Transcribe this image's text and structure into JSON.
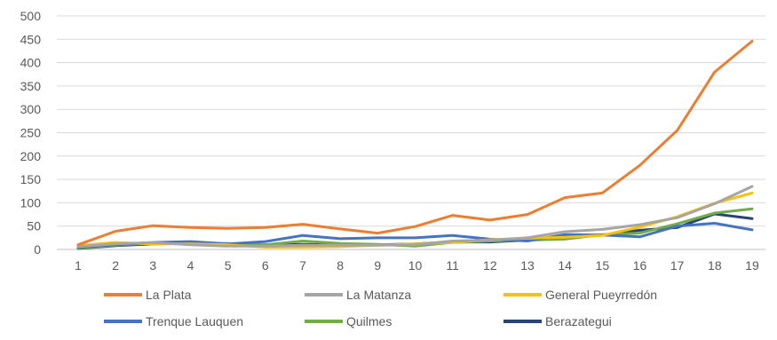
{
  "chart_data": {
    "type": "line",
    "title": "",
    "xlabel": "",
    "ylabel": "",
    "x": [
      1,
      2,
      3,
      4,
      5,
      6,
      7,
      8,
      9,
      10,
      11,
      12,
      13,
      14,
      15,
      16,
      17,
      18,
      19
    ],
    "ylim": [
      0,
      500
    ],
    "yticks": [
      0,
      50,
      100,
      150,
      200,
      250,
      300,
      350,
      400,
      450,
      500
    ],
    "grid": "horizontal",
    "legend_position": "bottom",
    "series": [
      {
        "name": "La Plata",
        "color": "#ED7D31",
        "values": [
          10,
          39,
          51,
          47,
          45,
          47,
          54,
          44,
          35,
          49,
          73,
          63,
          75,
          111,
          121,
          180,
          255,
          380,
          446
        ]
      },
      {
        "name": "La Matanza",
        "color": "#A5A5A5",
        "values": [
          6,
          12,
          15,
          10,
          7,
          7,
          9,
          9,
          9,
          10,
          18,
          20,
          25,
          38,
          43,
          53,
          68,
          98,
          135
        ]
      },
      {
        "name": "General Pueyrredón",
        "color": "#FFC000",
        "values": [
          8,
          15,
          12,
          12,
          10,
          5,
          5,
          6,
          9,
          12,
          15,
          21,
          24,
          26,
          30,
          48,
          70,
          99,
          121
        ]
      },
      {
        "name": "Trenque Lauquen",
        "color": "#4472C4",
        "values": [
          5,
          10,
          15,
          17,
          12,
          17,
          30,
          23,
          25,
          25,
          30,
          22,
          18,
          32,
          31,
          27,
          50,
          56,
          42
        ]
      },
      {
        "name": "Quilmes",
        "color": "#70AD47",
        "values": [
          3,
          9,
          14,
          12,
          13,
          10,
          18,
          13,
          11,
          7,
          15,
          18,
          20,
          22,
          32,
          35,
          55,
          78,
          87
        ]
      },
      {
        "name": "Berazategui",
        "color": "#264478",
        "values": [
          2,
          8,
          12,
          13,
          8,
          10,
          11,
          10,
          10,
          12,
          16,
          16,
          20,
          27,
          31,
          41,
          47,
          76,
          66
        ]
      }
    ]
  }
}
